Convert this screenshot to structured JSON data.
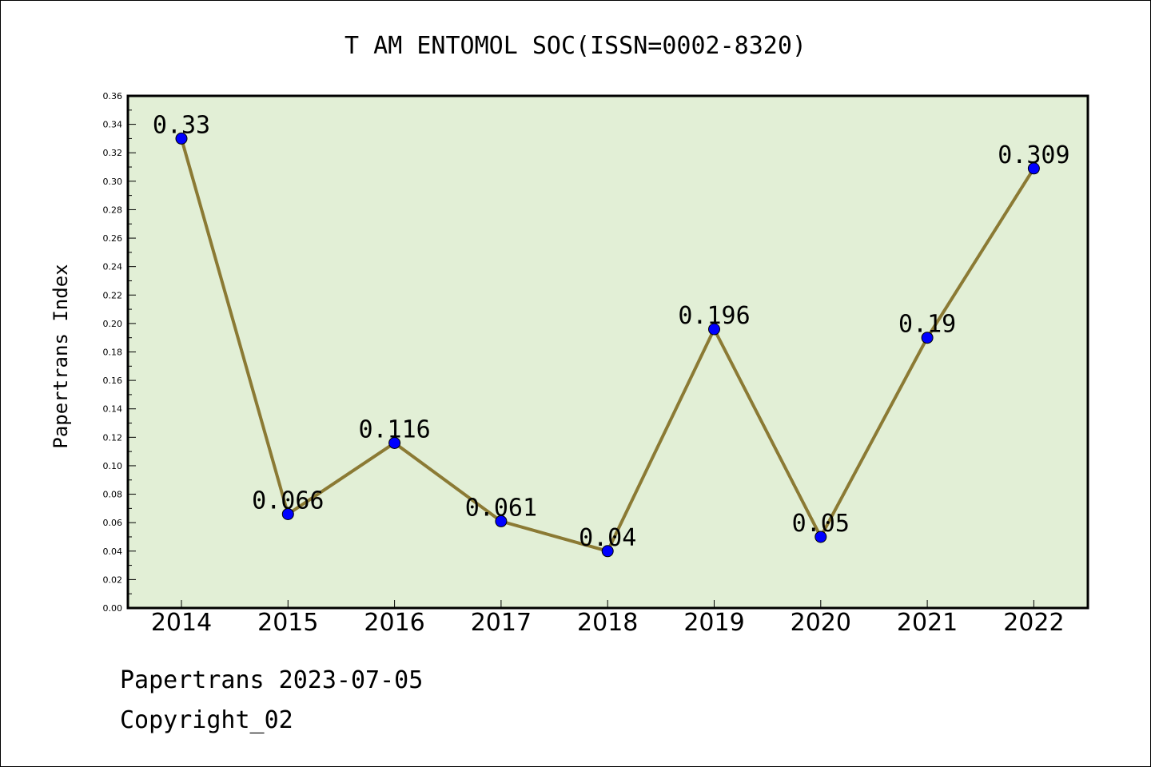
{
  "chart_data": {
    "type": "line",
    "title": "T AM ENTOMOL SOC(ISSN=0002-8320)",
    "ylabel": "Papertrans Index",
    "xlabel": "",
    "categories": [
      "2014",
      "2015",
      "2016",
      "2017",
      "2018",
      "2019",
      "2020",
      "2021",
      "2022"
    ],
    "values": [
      0.33,
      0.066,
      0.116,
      0.061,
      0.04,
      0.196,
      0.05,
      0.19,
      0.309
    ],
    "data_labels": [
      "0.33",
      "0.066",
      "0.116",
      "0.061",
      "0.04",
      "0.196",
      "0.05",
      "0.19",
      "0.309"
    ],
    "ylim": [
      0,
      0.36
    ],
    "yticks": [
      "0.00",
      "0.02",
      "0.04",
      "0.06",
      "0.08",
      "0.10",
      "0.12",
      "0.14",
      "0.16",
      "0.18",
      "0.20",
      "0.22",
      "0.24",
      "0.26",
      "0.28",
      "0.30",
      "0.32",
      "0.34",
      "0.36"
    ],
    "grid": false,
    "colors": {
      "plot_background": "#e2efd6",
      "line": "#8b7a34",
      "marker": "#0000ff",
      "axes": "#000000"
    }
  },
  "footer": {
    "line1": "Papertrans 2023-07-05",
    "line2": "Copyright_02"
  }
}
